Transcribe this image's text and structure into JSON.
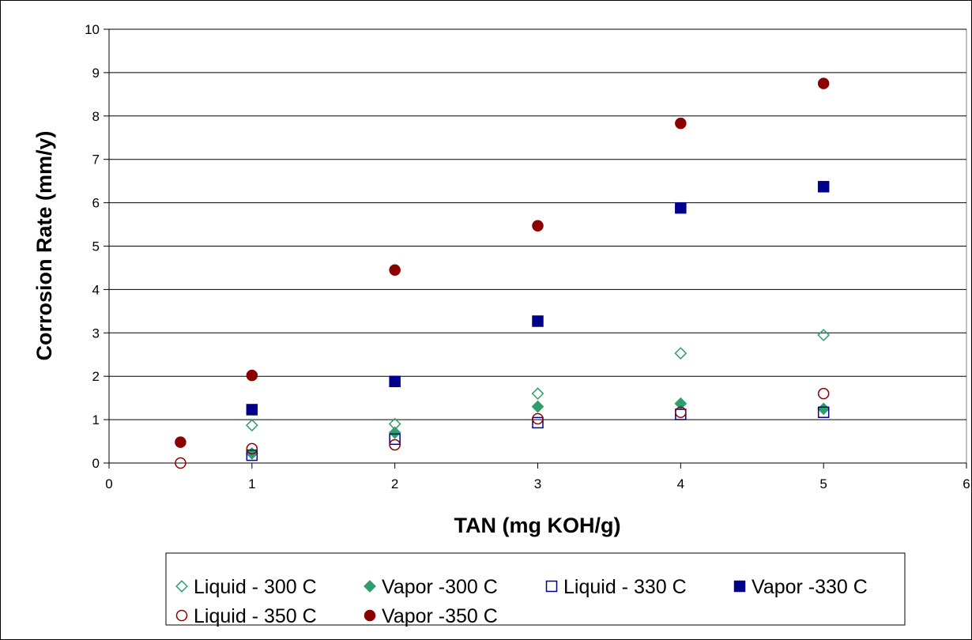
{
  "chart_data": {
    "type": "scatter",
    "title": "",
    "xlabel": "TAN (mg KOH/g)",
    "ylabel": "Corrosion Rate (mm/y)",
    "xlim": [
      0,
      6
    ],
    "ylim": [
      0,
      10
    ],
    "x_ticks": [
      "0",
      "1",
      "2",
      "3",
      "4",
      "5",
      "6"
    ],
    "y_ticks": [
      "0",
      "1",
      "2",
      "3",
      "4",
      "5",
      "6",
      "7",
      "8",
      "9",
      "10"
    ],
    "grid": "horizontal",
    "legend_position": "bottom",
    "series": [
      {
        "name": "Liquid - 300 C",
        "marker": "diamond",
        "filled": false,
        "color": "#2e9e6b",
        "points": [
          [
            1,
            0.87
          ],
          [
            2,
            0.9
          ],
          [
            3,
            1.6
          ],
          [
            4,
            2.53
          ],
          [
            5,
            2.95
          ]
        ]
      },
      {
        "name": "Vapor -300 C",
        "marker": "diamond",
        "filled": true,
        "color": "#2e9e6b",
        "points": [
          [
            1,
            0.22
          ],
          [
            2,
            0.7
          ],
          [
            3,
            1.3
          ],
          [
            4,
            1.37
          ],
          [
            5,
            1.25
          ]
        ]
      },
      {
        "name": "Liquid - 330 C",
        "marker": "square",
        "filled": false,
        "color": "#00008b",
        "points": [
          [
            1,
            0.18
          ],
          [
            2,
            0.55
          ],
          [
            3,
            0.93
          ],
          [
            4,
            1.12
          ],
          [
            5,
            1.17
          ]
        ]
      },
      {
        "name": "Vapor -330 C",
        "marker": "square",
        "filled": true,
        "color": "#00008b",
        "points": [
          [
            1,
            1.23
          ],
          [
            2,
            1.88
          ],
          [
            3,
            3.27
          ],
          [
            4,
            5.88
          ],
          [
            5,
            6.37
          ]
        ]
      },
      {
        "name": "Liquid - 350 C",
        "marker": "circle",
        "filled": false,
        "color": "#8b0000",
        "points": [
          [
            0.5,
            0.0
          ],
          [
            1,
            0.33
          ],
          [
            2,
            0.42
          ],
          [
            3,
            1.02
          ],
          [
            4,
            1.17
          ],
          [
            5,
            1.6
          ]
        ]
      },
      {
        "name": "Vapor -350 C",
        "marker": "circle",
        "filled": true,
        "color": "#8b0000",
        "points": [
          [
            0.5,
            0.48
          ],
          [
            1,
            2.02
          ],
          [
            2,
            4.45
          ],
          [
            3,
            5.47
          ],
          [
            4,
            7.83
          ],
          [
            5,
            8.75
          ]
        ]
      }
    ]
  }
}
